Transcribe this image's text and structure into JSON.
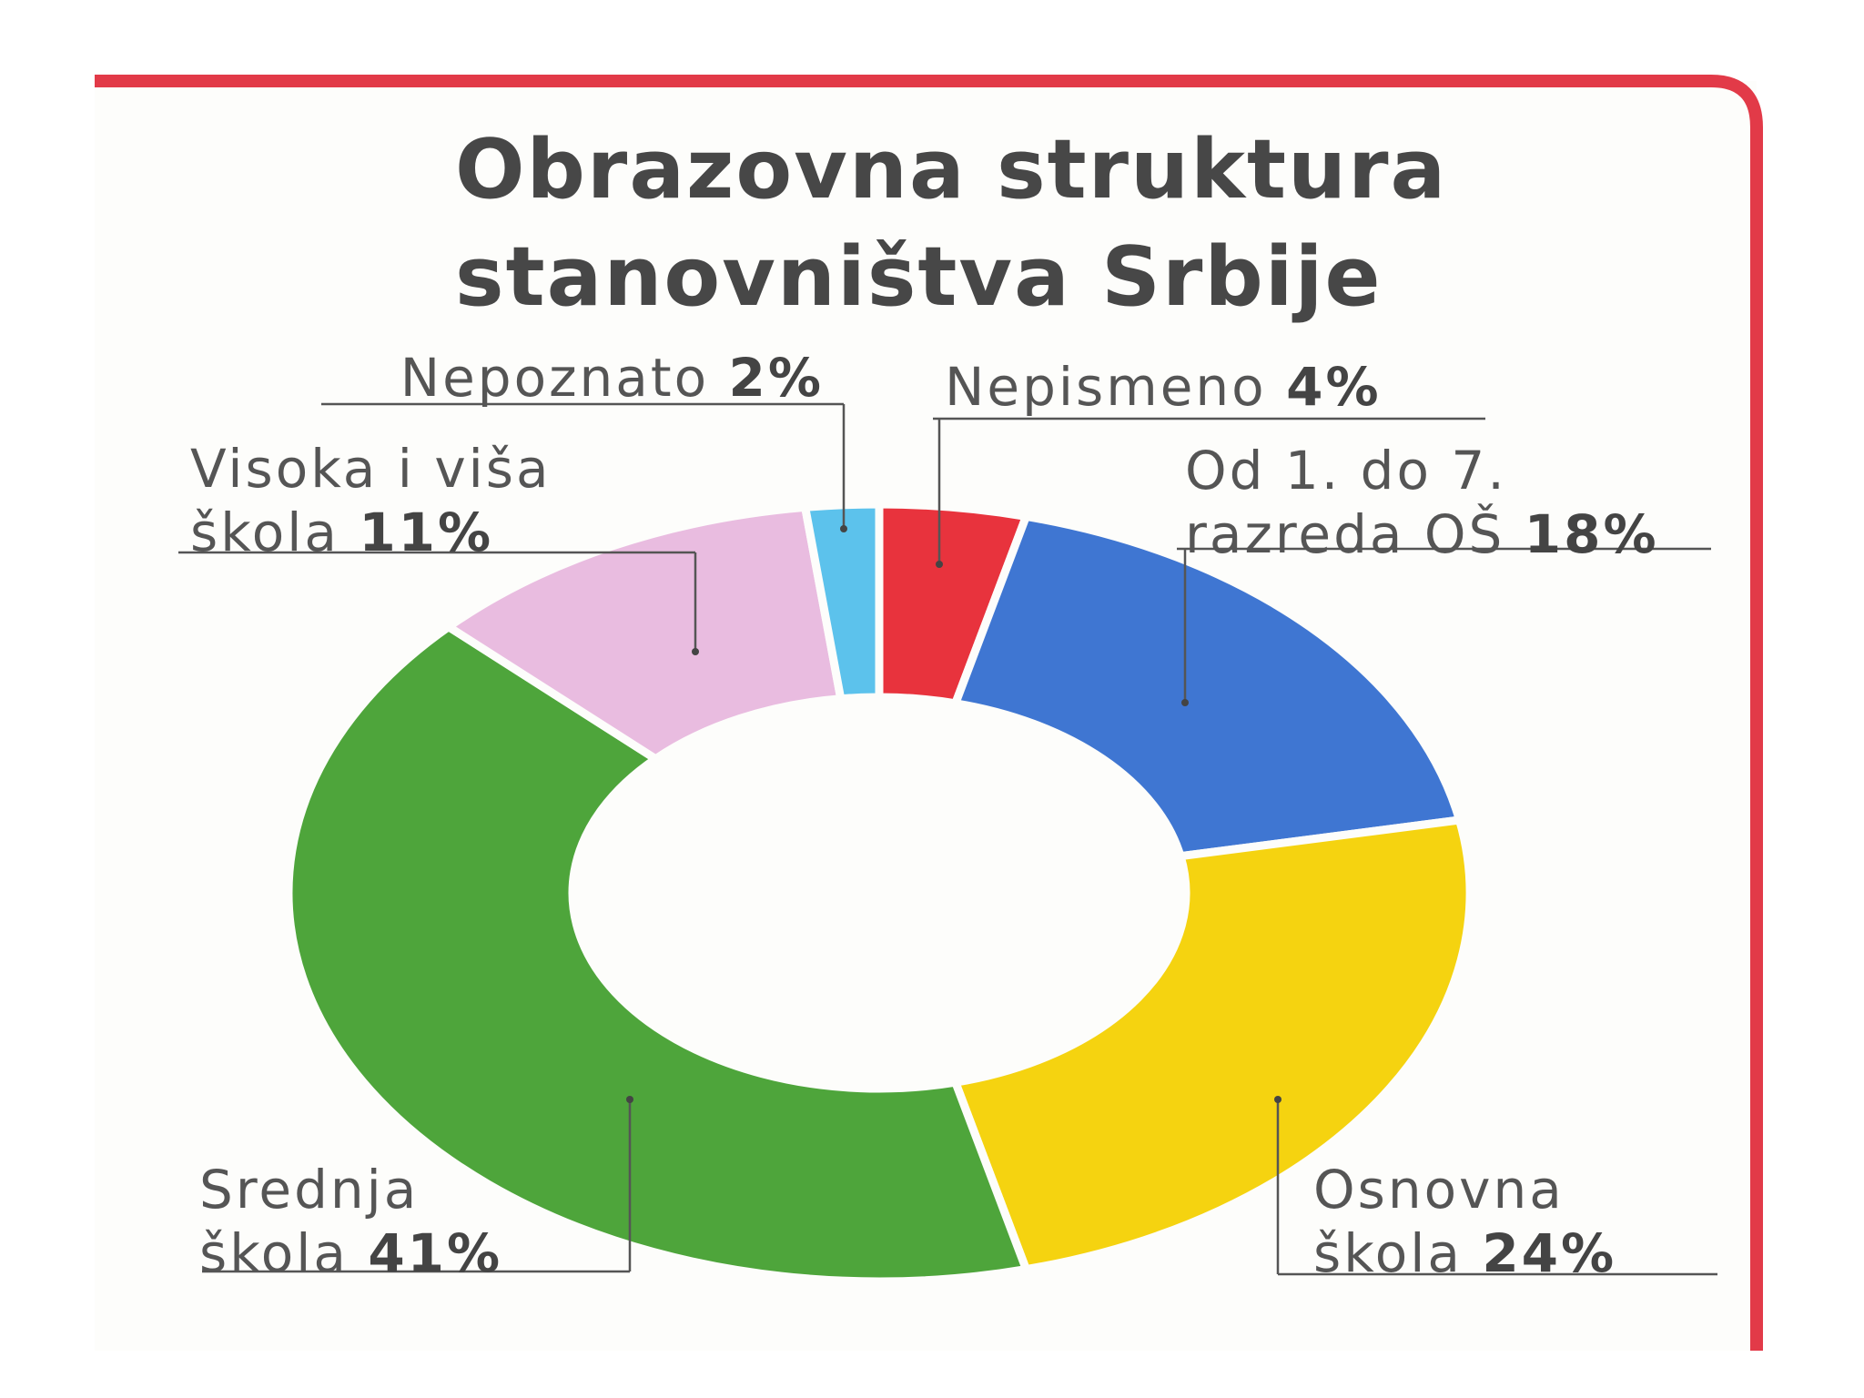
{
  "chart_data": {
    "type": "donut",
    "title": "Obrazovna struktura stanovništva Srbije",
    "categories": [
      "Nepismeno",
      "Od 1. do 7. razreda OŠ",
      "Osnovna škola",
      "Srednja škola",
      "Visoka i viša škola",
      "Nepoznato"
    ],
    "values": [
      4,
      18,
      24,
      41,
      11,
      2
    ],
    "value_labels": [
      "4%",
      "18%",
      "24%",
      "41%",
      "11%",
      "2%"
    ],
    "colors": [
      "#e8333d",
      "#3f76d2",
      "#f5d310",
      "#4ea53b",
      "#e9bce0",
      "#5cc2ec"
    ]
  }
}
